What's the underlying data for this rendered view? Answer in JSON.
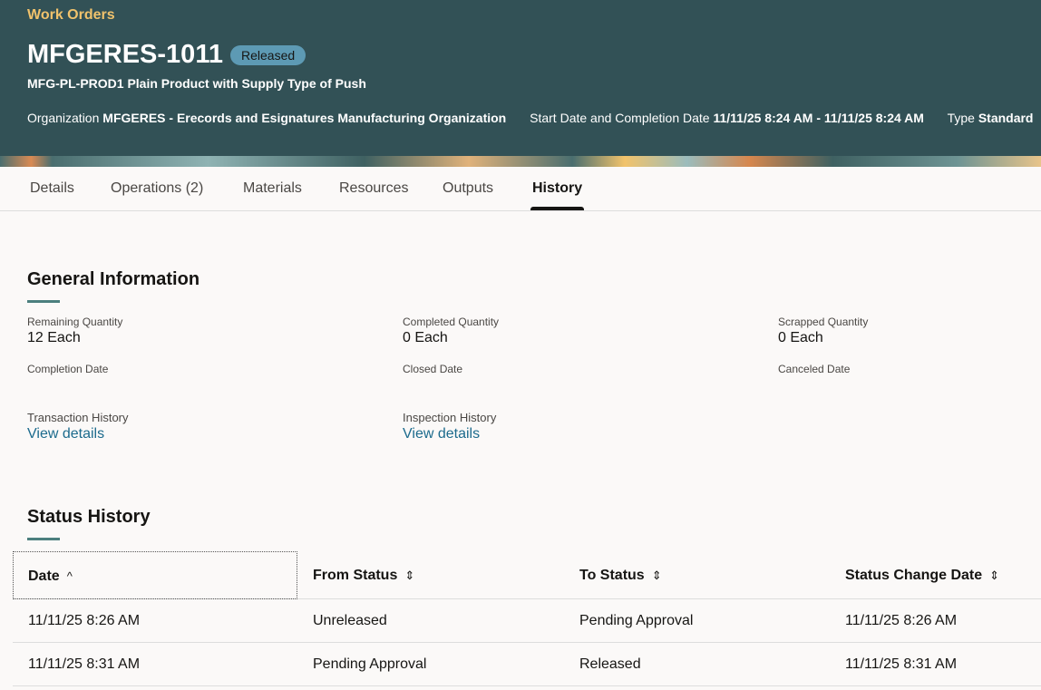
{
  "header": {
    "breadcrumb": "Work Orders",
    "title": "MFGERES-1011",
    "status": "Released",
    "subtitle": "MFG-PL-PROD1 Plain Product with Supply Type of Push",
    "meta": [
      {
        "label": "Organization",
        "value": "MFGERES - Erecords and Esignatures Manufacturing Organization"
      },
      {
        "label": "Start Date and Completion Date",
        "value": "11/11/25 8:24 AM - 11/11/25 8:24 AM"
      },
      {
        "label": "Type",
        "value": "Standard"
      }
    ]
  },
  "tabs": [
    {
      "label": "Details"
    },
    {
      "label": "Operations (2)"
    },
    {
      "label": "Materials"
    },
    {
      "label": "Resources"
    },
    {
      "label": "Outputs"
    },
    {
      "label": "History",
      "active": true
    }
  ],
  "general": {
    "title": "General Information",
    "fields": [
      {
        "label": "Remaining Quantity",
        "value": "12 Each"
      },
      {
        "label": "Completed Quantity",
        "value": "0 Each"
      },
      {
        "label": "Scrapped Quantity",
        "value": "0 Each"
      },
      {
        "label": "Completion Date",
        "value": ""
      },
      {
        "label": "Closed Date",
        "value": ""
      },
      {
        "label": "Canceled Date",
        "value": ""
      }
    ],
    "links": [
      {
        "label": "Transaction History",
        "link": "View details"
      },
      {
        "label": "Inspection History",
        "link": "View details"
      }
    ]
  },
  "status_history": {
    "title": "Status History",
    "columns": [
      "Date",
      "From Status",
      "To Status",
      "Status Change Date"
    ],
    "sort_icons": [
      "^",
      "⌃⌄"
    ],
    "rows": [
      [
        "11/11/25 8:26 AM",
        "Unreleased",
        "Pending Approval",
        "11/11/25 8:26 AM"
      ],
      [
        "11/11/25 8:31 AM",
        "Pending Approval",
        "Released",
        "11/11/25 8:31 AM"
      ]
    ]
  },
  "colors": {
    "header_bg": "#325156",
    "breadcrumb": "#f0c26c",
    "badge": "#5d9ab4",
    "link": "#1c6b8d",
    "accent": "#4c7f7e"
  }
}
